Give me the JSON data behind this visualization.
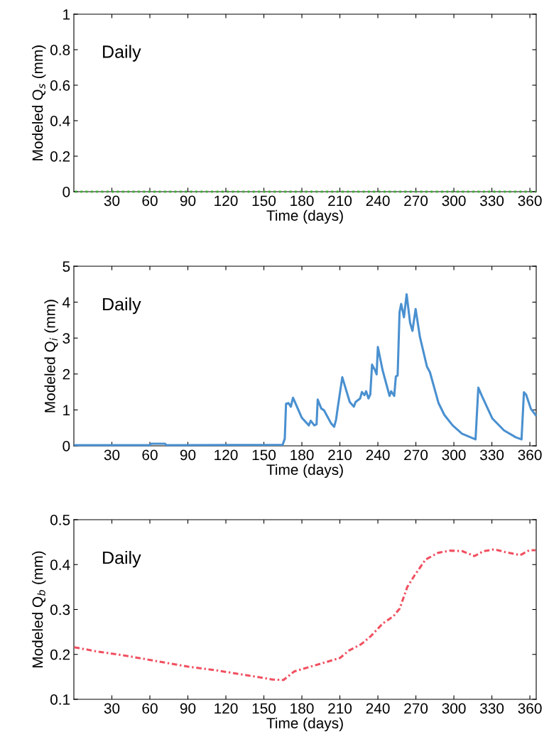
{
  "chart_data": [
    {
      "type": "line",
      "xlabel": "Time (days)",
      "ylabel": "Modeled Q$_{s}$ (mm)",
      "annotations": [
        "Daily"
      ],
      "xlim": [
        0,
        365
      ],
      "xticks": [
        30,
        60,
        90,
        120,
        150,
        180,
        210,
        240,
        270,
        300,
        330,
        360
      ],
      "ylim": [
        0,
        1
      ],
      "yticks": [
        0,
        0.2,
        0.4,
        0.6,
        0.8,
        1
      ],
      "line_style": "dotted",
      "series": [
        {
          "color": "#3cb030",
          "x": [
            1,
            365
          ],
          "values": [
            0,
            0
          ]
        }
      ]
    },
    {
      "type": "line",
      "xlabel": "Time (days)",
      "ylabel": "Modeled Q$_{i}$ (mm)",
      "annotations": [
        "Daily"
      ],
      "xlim": [
        0,
        365
      ],
      "xticks": [
        30,
        60,
        90,
        120,
        150,
        180,
        210,
        240,
        270,
        300,
        330,
        360
      ],
      "ylim": [
        0,
        5
      ],
      "yticks": [
        0,
        1,
        2,
        3,
        4,
        5
      ],
      "line_style": "solid",
      "series": [
        {
          "color": "#4a90d0",
          "x": [
            1,
            60,
            61,
            72,
            73,
            164.8,
            166.5,
            167.5,
            169.5,
            171.3,
            173,
            180,
            185.5,
            187,
            189.8,
            191.6,
            192.5,
            195.3,
            197.5,
            203,
            205.5,
            207,
            208.6,
            211.9,
            217.8,
            221,
            222.4,
            226,
            227.4,
            229.4,
            230.7,
            232.6,
            234,
            235.4,
            237.7,
            239,
            240,
            243.7,
            249.2,
            250.5,
            252.9,
            254.2,
            255.6,
            257.1,
            258.4,
            260.6,
            262.7,
            265.4,
            267.3,
            269.8,
            273.2,
            278.7,
            281.1,
            287.9,
            292.5,
            299,
            306.4,
            317.1,
            319.3,
            322.1,
            330.4,
            339.6,
            348.8,
            353.4,
            355.3,
            357.1,
            360.8,
            364.5
          ],
          "values": [
            0.02,
            0.02,
            0.06,
            0.06,
            0.02,
            0.03,
            0.2,
            1.17,
            1.19,
            1.09,
            1.34,
            0.78,
            0.57,
            0.7,
            0.57,
            0.6,
            1.29,
            1.04,
            0.99,
            0.63,
            0.53,
            0.73,
            1.13,
            1.91,
            1.22,
            1.09,
            1.22,
            1.32,
            1.5,
            1.41,
            1.52,
            1.32,
            1.43,
            2.26,
            2.11,
            1.99,
            2.75,
            2.11,
            1.39,
            1.52,
            1.39,
            1.93,
            1.96,
            3.72,
            3.95,
            3.58,
            4.22,
            3.43,
            3.2,
            3.81,
            3.03,
            2.21,
            2.05,
            1.19,
            0.86,
            0.57,
            0.34,
            0.18,
            1.62,
            1.39,
            0.76,
            0.43,
            0.24,
            0.18,
            1.49,
            1.42,
            1.03,
            0.86
          ]
        }
      ]
    },
    {
      "type": "line",
      "xlabel": "Time (days)",
      "ylabel": "Modeled Q$_{b}$ (mm)",
      "annotations": [
        "Daily"
      ],
      "xlim": [
        0,
        365
      ],
      "xticks": [
        30,
        60,
        90,
        120,
        150,
        180,
        210,
        240,
        270,
        300,
        330,
        360
      ],
      "ylim": [
        0.1,
        0.5
      ],
      "yticks": [
        0.1,
        0.2,
        0.3,
        0.4,
        0.5
      ],
      "line_style": "dashdot",
      "series": [
        {
          "color": "#f05060",
          "x": [
            0.3,
            17.2,
            41.3,
            65.4,
            89.6,
            113.7,
            137.8,
            157,
            165.5,
            174,
            186,
            198,
            210,
            217.4,
            227,
            234.2,
            243.9,
            252.3,
            257.2,
            263.2,
            269.2,
            277.6,
            287.3,
            296.9,
            306.6,
            316.2,
            323.5,
            331.9,
            340.3,
            352.4,
            359.6,
            364.4
          ],
          "values": [
            0.216,
            0.207,
            0.197,
            0.185,
            0.173,
            0.164,
            0.153,
            0.144,
            0.143,
            0.162,
            0.172,
            0.182,
            0.192,
            0.209,
            0.223,
            0.24,
            0.269,
            0.285,
            0.302,
            0.35,
            0.377,
            0.411,
            0.426,
            0.431,
            0.43,
            0.419,
            0.43,
            0.434,
            0.428,
            0.421,
            0.432,
            0.432
          ]
        }
      ]
    }
  ]
}
